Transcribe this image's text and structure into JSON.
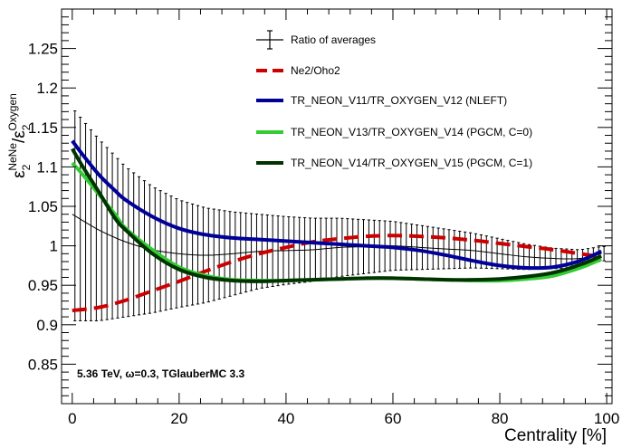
{
  "chart_data": {
    "type": "line",
    "title": "",
    "xlabel": "Centrality [%]",
    "ylabel": {
      "base": "ε",
      "sub": "2",
      "sup_num": "NeNe",
      "slash": "/",
      "den_base": "ε",
      "den_sub": "2",
      "den_sup": "Oxygen"
    },
    "xlim": [
      -2,
      101
    ],
    "ylim": [
      0.8,
      1.3
    ],
    "x_ticks": [
      {
        "value": 0,
        "label": "0"
      },
      {
        "value": 20,
        "label": "20"
      },
      {
        "value": 40,
        "label": "40"
      },
      {
        "value": 60,
        "label": "60"
      },
      {
        "value": 80,
        "label": "80"
      },
      {
        "value": 100,
        "label": "100"
      }
    ],
    "y_ticks": [
      {
        "value": 0.85,
        "label": "0.85"
      },
      {
        "value": 0.9,
        "label": "0.9"
      },
      {
        "value": 0.95,
        "label": "0.95"
      },
      {
        "value": 1.0,
        "label": "1"
      },
      {
        "value": 1.05,
        "label": "1.05"
      },
      {
        "value": 1.1,
        "label": "1.1"
      },
      {
        "value": 1.15,
        "label": "1.15"
      },
      {
        "value": 1.2,
        "label": "1.2"
      },
      {
        "value": 1.25,
        "label": "1.25"
      }
    ],
    "grid": false,
    "legend_position": "top-center",
    "annotation": "5.36 TeV, ω=0.3, TGlauberMC 3.3",
    "ratio_of_averages": {
      "name": "Ratio of averages",
      "color": "#000000",
      "x": [
        0,
        5,
        10,
        15,
        20,
        25,
        30,
        35,
        40,
        45,
        50,
        55,
        60,
        65,
        70,
        75,
        80,
        85,
        90,
        95,
        99
      ],
      "y": [
        1.04,
        1.02,
        1.005,
        0.995,
        0.99,
        0.988,
        0.99,
        0.993,
        0.994,
        0.995,
        0.998,
        0.999,
        1.0,
        0.998,
        0.996,
        0.994,
        0.99,
        0.986,
        0.984,
        0.984,
        0.99
      ],
      "err": [
        0.135,
        0.115,
        0.095,
        0.08,
        0.068,
        0.06,
        0.053,
        0.047,
        0.043,
        0.04,
        0.037,
        0.034,
        0.031,
        0.028,
        0.025,
        0.022,
        0.019,
        0.016,
        0.013,
        0.011,
        0.009
      ]
    },
    "series": [
      {
        "name": "Ne2/Oho2",
        "color": "#cc0000",
        "style": "dashed",
        "x": [
          0,
          5,
          10,
          15,
          20,
          25,
          30,
          35,
          40,
          45,
          50,
          55,
          60,
          65,
          70,
          75,
          80,
          85,
          90,
          95,
          99
        ],
        "y": [
          0.918,
          0.922,
          0.931,
          0.943,
          0.955,
          0.968,
          0.98,
          0.99,
          0.998,
          1.005,
          1.009,
          1.012,
          1.013,
          1.012,
          1.01,
          1.007,
          1.003,
          0.999,
          0.995,
          0.99,
          0.986
        ]
      },
      {
        "name": "TR_NEON_V11/TR_OXYGEN_V12 (NLEFT)",
        "color": "#000099",
        "style": "solid",
        "x": [
          0,
          2,
          5,
          8,
          10,
          15,
          20,
          25,
          30,
          35,
          40,
          45,
          50,
          55,
          60,
          65,
          70,
          75,
          80,
          85,
          90,
          95,
          99
        ],
        "y": [
          1.133,
          1.115,
          1.09,
          1.07,
          1.058,
          1.037,
          1.022,
          1.014,
          1.01,
          1.008,
          1.006,
          1.004,
          1.002,
          1.0,
          0.998,
          0.994,
          0.988,
          0.981,
          0.975,
          0.972,
          0.973,
          0.981,
          0.993
        ]
      },
      {
        "name": "TR_NEON_V13/TR_OXYGEN_V14 (PGCM, C=0)",
        "color": "#33cc33",
        "style": "solid",
        "x": [
          0,
          2,
          5,
          8,
          10,
          15,
          20,
          25,
          30,
          35,
          40,
          45,
          50,
          55,
          60,
          65,
          70,
          75,
          80,
          85,
          90,
          95,
          99
        ],
        "y": [
          1.105,
          1.09,
          1.065,
          1.04,
          1.022,
          0.995,
          0.973,
          0.962,
          0.957,
          0.956,
          0.956,
          0.957,
          0.958,
          0.959,
          0.959,
          0.958,
          0.957,
          0.956,
          0.956,
          0.958,
          0.962,
          0.972,
          0.983
        ]
      },
      {
        "name": "TR_NEON_V14/TR_OXYGEN_V15 (PGCM, C=1)",
        "color": "#003300",
        "style": "solid",
        "x": [
          0,
          2,
          5,
          8,
          10,
          15,
          20,
          25,
          30,
          35,
          40,
          45,
          50,
          55,
          60,
          65,
          70,
          75,
          80,
          85,
          90,
          95,
          99
        ],
        "y": [
          1.123,
          1.1,
          1.068,
          1.035,
          1.02,
          0.99,
          0.97,
          0.96,
          0.956,
          0.955,
          0.956,
          0.957,
          0.958,
          0.959,
          0.959,
          0.958,
          0.957,
          0.957,
          0.958,
          0.961,
          0.966,
          0.976,
          0.987
        ]
      }
    ]
  }
}
